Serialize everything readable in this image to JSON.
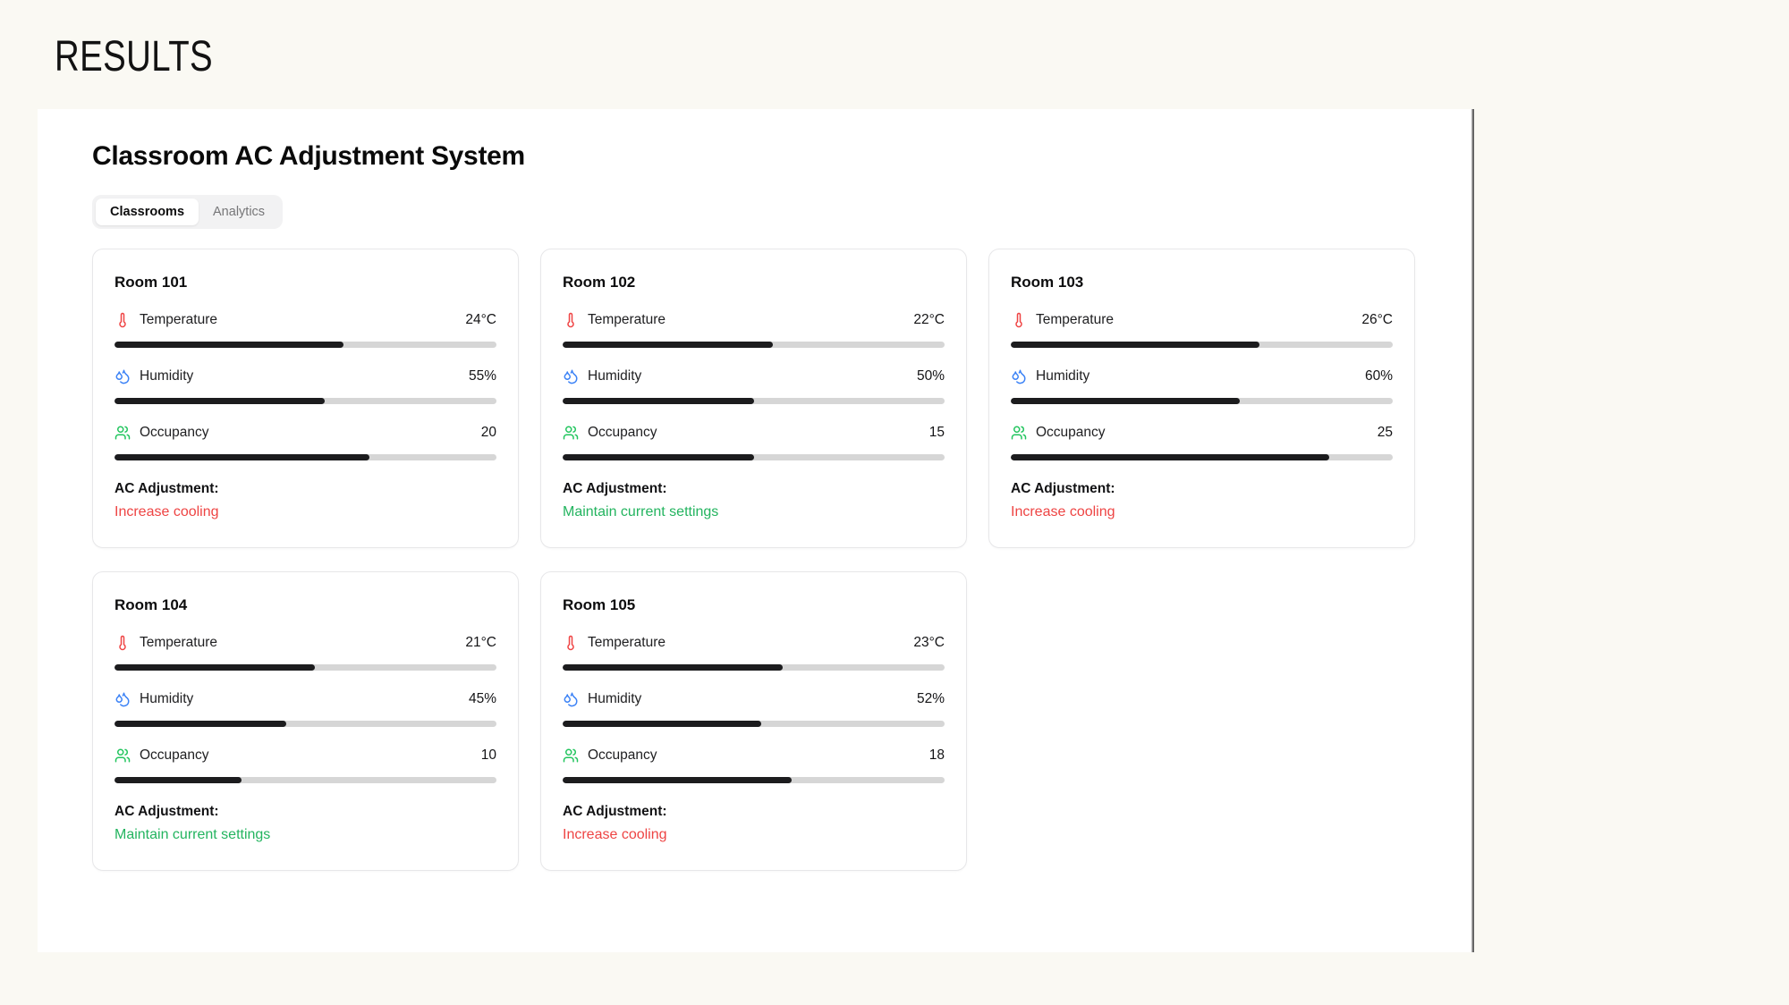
{
  "page": {
    "heading": "RESULTS"
  },
  "app": {
    "title": "Classroom AC Adjustment System",
    "tabs": [
      {
        "label": "Classrooms",
        "active": true
      },
      {
        "label": "Analytics",
        "active": false
      }
    ]
  },
  "colors": {
    "background": "#faf9f3",
    "panel": "#ffffff",
    "bar_track": "#d6d6d6",
    "bar_fill": "#1c1c1e",
    "status_increase": "#ee4443",
    "status_maintain": "#23b45f",
    "temperature_icon": "#ef4444",
    "humidity_icon": "#3b82f6",
    "occupancy_icon": "#22c55e"
  },
  "scales": {
    "temperature_max_c": 40,
    "humidity_max_pct": 100,
    "occupancy_max": 30
  },
  "rooms": [
    {
      "name": "Room 101",
      "metrics": [
        {
          "id": "temperature",
          "label": "Temperature",
          "value": "24°C",
          "bar_pct": 60
        },
        {
          "id": "humidity",
          "label": "Humidity",
          "value": "55%",
          "bar_pct": 55
        },
        {
          "id": "occupancy",
          "label": "Occupancy",
          "value": "20",
          "bar_pct": 66.7
        }
      ],
      "ac_label": "AC Adjustment:",
      "ac_status": "Increase cooling",
      "ac_status_type": "increase"
    },
    {
      "name": "Room 102",
      "metrics": [
        {
          "id": "temperature",
          "label": "Temperature",
          "value": "22°C",
          "bar_pct": 55
        },
        {
          "id": "humidity",
          "label": "Humidity",
          "value": "50%",
          "bar_pct": 50
        },
        {
          "id": "occupancy",
          "label": "Occupancy",
          "value": "15",
          "bar_pct": 50
        }
      ],
      "ac_label": "AC Adjustment:",
      "ac_status": "Maintain current settings",
      "ac_status_type": "maintain"
    },
    {
      "name": "Room 103",
      "metrics": [
        {
          "id": "temperature",
          "label": "Temperature",
          "value": "26°C",
          "bar_pct": 65
        },
        {
          "id": "humidity",
          "label": "Humidity",
          "value": "60%",
          "bar_pct": 60
        },
        {
          "id": "occupancy",
          "label": "Occupancy",
          "value": "25",
          "bar_pct": 83.3
        }
      ],
      "ac_label": "AC Adjustment:",
      "ac_status": "Increase cooling",
      "ac_status_type": "increase"
    },
    {
      "name": "Room 104",
      "metrics": [
        {
          "id": "temperature",
          "label": "Temperature",
          "value": "21°C",
          "bar_pct": 52.5
        },
        {
          "id": "humidity",
          "label": "Humidity",
          "value": "45%",
          "bar_pct": 45
        },
        {
          "id": "occupancy",
          "label": "Occupancy",
          "value": "10",
          "bar_pct": 33.3
        }
      ],
      "ac_label": "AC Adjustment:",
      "ac_status": "Maintain current settings",
      "ac_status_type": "maintain"
    },
    {
      "name": "Room 105",
      "metrics": [
        {
          "id": "temperature",
          "label": "Temperature",
          "value": "23°C",
          "bar_pct": 57.5
        },
        {
          "id": "humidity",
          "label": "Humidity",
          "value": "52%",
          "bar_pct": 52
        },
        {
          "id": "occupancy",
          "label": "Occupancy",
          "value": "18",
          "bar_pct": 60
        }
      ],
      "ac_label": "AC Adjustment:",
      "ac_status": "Increase cooling",
      "ac_status_type": "increase"
    }
  ]
}
